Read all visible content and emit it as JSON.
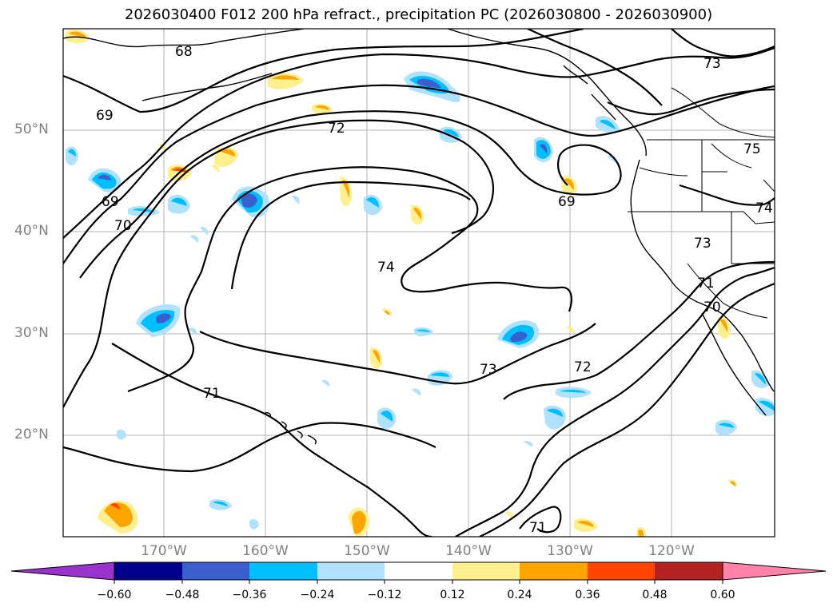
{
  "title": "2026030400 F012 200 hPa refract., precipitation PC (2026030800 - 2026030900)",
  "lat_labels": [
    "50°N",
    "40°N",
    "30°N",
    "20°N"
  ],
  "lon_labels": [
    "170°W",
    "160°W",
    "150°W",
    "140°W",
    "130°W",
    "120°W"
  ],
  "contour_labels": [
    "68",
    "69",
    "69",
    "69",
    "70",
    "70",
    "71",
    "71",
    "71",
    "72",
    "72",
    "73",
    "73",
    "73",
    "74",
    "74",
    "75"
  ],
  "colorbar": {
    "ticks": [
      "−0.60",
      "−0.48",
      "−0.36",
      "−0.24",
      "−0.12",
      "0.12",
      "0.24",
      "0.36",
      "0.48",
      "0.60"
    ],
    "colors": [
      "#9a32cd",
      "#00008b",
      "#3a5fcd",
      "#00bfff",
      "#b0e2ff",
      "#ffffff",
      "#fff08f",
      "#ffa500",
      "#ff4500",
      "#b22222",
      "#ff82ab"
    ]
  }
}
